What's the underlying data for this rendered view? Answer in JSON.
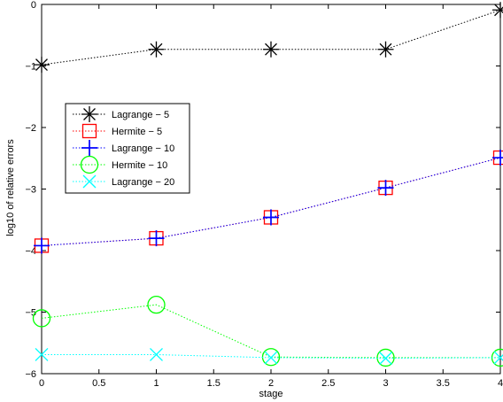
{
  "chart_data": {
    "type": "line",
    "title": "",
    "xlabel": "stage",
    "ylabel": "log10 of relative errors",
    "xlim": [
      0,
      4
    ],
    "ylim": [
      -6,
      0
    ],
    "xticks": [
      "0",
      "0.5",
      "1",
      "1.5",
      "2",
      "2.5",
      "3",
      "3.5",
      "4"
    ],
    "yticks": [
      "0",
      "−1",
      "−2",
      "−3",
      "−4",
      "−5",
      "−6"
    ],
    "grid": false,
    "legend_position": "upper-left",
    "x": [
      0,
      1,
      2,
      3,
      4
    ],
    "series": [
      {
        "name": "Lagrange − 5",
        "marker": "asterisk",
        "color": "#000000",
        "values": [
          -0.98,
          -0.73,
          -0.73,
          -0.73,
          -0.09
        ]
      },
      {
        "name": "Hermite − 5",
        "marker": "square",
        "color": "#ff0000",
        "values": [
          -3.92,
          -3.8,
          -3.46,
          -2.98,
          -2.49
        ]
      },
      {
        "name": "Lagrange − 10",
        "marker": "plus",
        "color": "#0000ff",
        "values": [
          -3.92,
          -3.8,
          -3.46,
          -2.98,
          -2.49
        ]
      },
      {
        "name": "Hermite − 10",
        "marker": "circle",
        "color": "#00ff00",
        "values": [
          -5.1,
          -4.88,
          -5.73,
          -5.74,
          -5.74
        ]
      },
      {
        "name": "Lagrange − 20",
        "marker": "x",
        "color": "#00ffff",
        "values": [
          -5.69,
          -5.69,
          -5.74,
          -5.75,
          -5.74
        ]
      }
    ]
  }
}
